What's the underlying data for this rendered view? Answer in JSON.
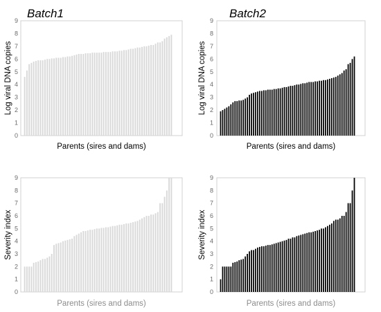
{
  "chart_data": [
    {
      "type": "bar",
      "batch": "Batch1",
      "ylabel": "Log viral DNA copies",
      "xlabel": "Parents (sires and dams)",
      "ylim": [
        0,
        9
      ],
      "yticks": [
        0,
        1,
        2,
        3,
        4,
        5,
        6,
        7,
        8,
        9
      ],
      "bar_color": "#d9d9d9",
      "xlabel_color": "#000000",
      "values": [
        4.6,
        5.1,
        5.6,
        5.7,
        5.8,
        5.85,
        5.9,
        5.9,
        5.9,
        5.95,
        6.0,
        6.0,
        6.05,
        6.05,
        6.1,
        6.1,
        6.1,
        6.15,
        6.15,
        6.2,
        6.2,
        6.25,
        6.3,
        6.35,
        6.4,
        6.4,
        6.4,
        6.45,
        6.45,
        6.45,
        6.5,
        6.5,
        6.5,
        6.5,
        6.5,
        6.55,
        6.55,
        6.55,
        6.55,
        6.6,
        6.6,
        6.6,
        6.65,
        6.65,
        6.7,
        6.7,
        6.75,
        6.8,
        6.8,
        6.85,
        6.9,
        6.9,
        6.95,
        7.0,
        7.0,
        7.05,
        7.1,
        7.1,
        7.2,
        7.3,
        7.3,
        7.4,
        7.6,
        7.7,
        7.8,
        7.9
      ]
    },
    {
      "type": "bar",
      "batch": "Batch2",
      "ylabel": "Log viral DNA copies",
      "xlabel": "Parents (sires and dams)",
      "ylim": [
        0,
        9
      ],
      "yticks": [
        0,
        1,
        2,
        3,
        4,
        5,
        6,
        7,
        8,
        9
      ],
      "bar_color": "#000000",
      "xlabel_color": "#000000",
      "values": [
        1.9,
        2.0,
        2.1,
        2.2,
        2.3,
        2.45,
        2.6,
        2.7,
        2.7,
        2.75,
        2.75,
        2.8,
        2.9,
        3.0,
        3.2,
        3.3,
        3.35,
        3.4,
        3.45,
        3.5,
        3.5,
        3.55,
        3.55,
        3.6,
        3.6,
        3.6,
        3.65,
        3.65,
        3.7,
        3.7,
        3.75,
        3.8,
        3.8,
        3.85,
        3.9,
        3.9,
        3.95,
        4.0,
        4.0,
        4.05,
        4.1,
        4.1,
        4.15,
        4.2,
        4.2,
        4.2,
        4.25,
        4.25,
        4.3,
        4.3,
        4.35,
        4.35,
        4.4,
        4.45,
        4.5,
        4.55,
        4.6,
        4.7,
        4.8,
        4.9,
        5.1,
        5.2,
        5.6,
        5.7,
        6.0,
        6.2
      ]
    },
    {
      "type": "bar",
      "batch": "Batch1",
      "ylabel": "Severity index",
      "xlabel": "Parents (sires and dams)",
      "ylim": [
        0,
        9
      ],
      "yticks": [
        0,
        1,
        2,
        3,
        4,
        5,
        6,
        7,
        8,
        9
      ],
      "bar_color": "#d9d9d9",
      "xlabel_color": "#8c8c8c",
      "values": [
        2.0,
        2.0,
        2.0,
        2.0,
        2.3,
        2.35,
        2.4,
        2.5,
        2.6,
        2.6,
        2.7,
        2.8,
        3.0,
        3.7,
        3.8,
        3.85,
        3.9,
        4.0,
        4.05,
        4.1,
        4.15,
        4.2,
        4.4,
        4.5,
        4.6,
        4.7,
        4.8,
        4.8,
        4.85,
        4.9,
        4.9,
        4.95,
        5.0,
        5.0,
        5.05,
        5.05,
        5.1,
        5.1,
        5.15,
        5.2,
        5.2,
        5.25,
        5.3,
        5.3,
        5.35,
        5.4,
        5.4,
        5.45,
        5.5,
        5.55,
        5.6,
        5.7,
        5.8,
        5.9,
        6.0,
        6.0,
        6.1,
        6.1,
        6.2,
        6.3,
        7.0,
        7.0,
        7.5,
        8.0,
        9.0,
        9.0
      ]
    },
    {
      "type": "bar",
      "batch": "Batch2",
      "ylabel": "Severity index",
      "xlabel": "Parents (sires and dams)",
      "ylim": [
        0,
        9
      ],
      "yticks": [
        0,
        1,
        2,
        3,
        4,
        5,
        6,
        7,
        8,
        9
      ],
      "bar_color": "#000000",
      "xlabel_color": "#8c8c8c",
      "values": [
        1.0,
        2.0,
        2.0,
        2.0,
        2.0,
        2.0,
        2.3,
        2.35,
        2.4,
        2.5,
        2.55,
        2.6,
        2.8,
        3.0,
        3.2,
        3.3,
        3.3,
        3.4,
        3.5,
        3.55,
        3.6,
        3.6,
        3.65,
        3.7,
        3.7,
        3.75,
        3.8,
        3.85,
        3.9,
        3.95,
        4.0,
        4.05,
        4.1,
        4.2,
        4.2,
        4.3,
        4.3,
        4.4,
        4.45,
        4.5,
        4.55,
        4.6,
        4.65,
        4.7,
        4.7,
        4.75,
        4.8,
        4.85,
        4.9,
        5.0,
        5.0,
        5.1,
        5.2,
        5.3,
        5.4,
        5.6,
        5.7,
        5.7,
        5.8,
        6.0,
        6.0,
        6.3,
        7.0,
        7.0,
        8.0,
        9.0
      ]
    }
  ],
  "titles": {
    "batch1": "Batch1",
    "batch2": "Batch2"
  }
}
